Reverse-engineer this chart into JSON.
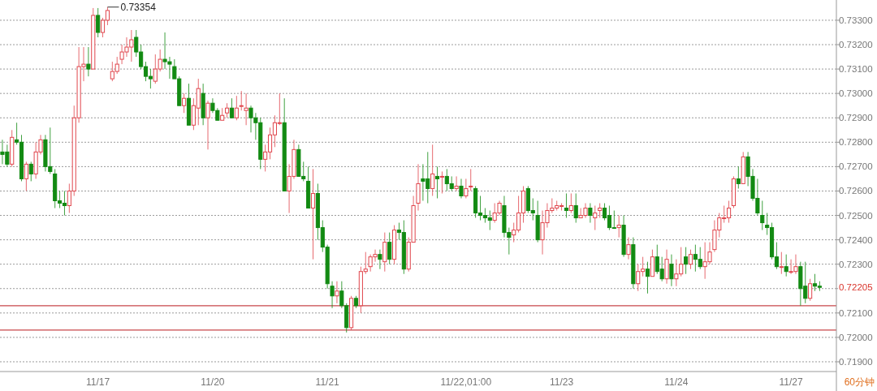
{
  "chart_data": {
    "type": "candlestick",
    "categories": [
      null,
      null,
      null,
      null,
      null,
      null,
      null,
      null,
      null,
      null,
      null,
      null,
      null,
      null,
      null,
      null,
      null,
      null,
      null,
      null,
      "11/17",
      null,
      null,
      null,
      null,
      null,
      null,
      null,
      null,
      null,
      null,
      null,
      null,
      null,
      null,
      null,
      null,
      null,
      null,
      null,
      null,
      null,
      null,
      null,
      "11/20",
      null,
      null,
      null,
      null,
      null,
      null,
      null,
      null,
      null,
      null,
      null,
      null,
      null,
      null,
      null,
      null,
      null,
      null,
      null,
      null,
      null,
      null,
      null,
      "11/21",
      null,
      null,
      null,
      null,
      null,
      null,
      null,
      null,
      null,
      null,
      null,
      null,
      null,
      null,
      null,
      null,
      null,
      null,
      null,
      null,
      null,
      null,
      null,
      null,
      null,
      null,
      null,
      null,
      "11/22,01:00",
      null,
      null,
      null,
      null,
      null,
      null,
      null,
      null,
      null,
      null,
      null,
      null,
      null,
      null,
      null,
      null,
      null,
      null,
      null,
      "11/23",
      null,
      null,
      null,
      null,
      null,
      null,
      null,
      null,
      null,
      null,
      null,
      null,
      null,
      null,
      null,
      null,
      null,
      null,
      null,
      null,
      null,
      null,
      null,
      "11/24",
      null,
      null,
      null,
      null,
      null,
      null,
      null,
      null,
      null,
      null,
      null,
      null,
      null,
      null,
      null,
      null,
      null,
      null,
      null,
      null,
      null,
      null,
      null,
      "11/27",
      null,
      null,
      null,
      null,
      null,
      null
    ],
    "ohlc": [
      [
        0.7276,
        0.7281,
        0.7271,
        0.7275
      ],
      [
        0.7276,
        0.7279,
        0.727,
        0.7271
      ],
      [
        0.7271,
        0.7285,
        0.727,
        0.7282
      ],
      [
        0.7281,
        0.7288,
        0.7279,
        0.728
      ],
      [
        0.728,
        0.7283,
        0.7264,
        0.7265
      ],
      [
        0.7265,
        0.7272,
        0.726,
        0.7271
      ],
      [
        0.7271,
        0.7272,
        0.7264,
        0.7267
      ],
      [
        0.7267,
        0.728,
        0.7265,
        0.7276
      ],
      [
        0.7276,
        0.7283,
        0.7275,
        0.7281
      ],
      [
        0.7281,
        0.7283,
        0.7268,
        0.727
      ],
      [
        0.727,
        0.7286,
        0.7267,
        0.7268
      ],
      [
        0.7267,
        0.7269,
        0.7253,
        0.7256
      ],
      [
        0.7256,
        0.726,
        0.7253,
        0.7255
      ],
      [
        0.7255,
        0.726,
        0.725,
        0.7254
      ],
      [
        0.7254,
        0.7263,
        0.7251,
        0.726
      ],
      [
        0.726,
        0.7295,
        0.7258,
        0.729
      ],
      [
        0.729,
        0.7319,
        0.7288,
        0.7311
      ],
      [
        0.7311,
        0.7319,
        0.7305,
        0.7312
      ],
      [
        0.7312,
        0.7319,
        0.7307,
        0.731
      ],
      [
        0.731,
        0.7335,
        0.731,
        0.7332
      ],
      [
        0.7332,
        0.7335,
        0.7323,
        0.7325
      ],
      [
        0.7325,
        0.7331,
        0.7323,
        0.733
      ],
      [
        0.733,
        0.73354,
        0.7328,
        0.7334
      ],
      [
        0.7306,
        0.7313,
        0.7305,
        0.7309
      ],
      [
        0.7309,
        0.7315,
        0.7308,
        0.7312
      ],
      [
        0.7314,
        0.732,
        0.7312,
        0.7317
      ],
      [
        0.7317,
        0.7323,
        0.7315,
        0.7319
      ],
      [
        0.7319,
        0.7326,
        0.7313,
        0.7322
      ],
      [
        0.7323,
        0.7326,
        0.7315,
        0.7317
      ],
      [
        0.7317,
        0.732,
        0.731,
        0.7311
      ],
      [
        0.7311,
        0.7313,
        0.7305,
        0.7307
      ],
      [
        0.7307,
        0.731,
        0.7302,
        0.7306
      ],
      [
        0.7305,
        0.7316,
        0.7304,
        0.731
      ],
      [
        0.731,
        0.7318,
        0.7309,
        0.7314
      ],
      [
        0.7314,
        0.7325,
        0.731,
        0.7313
      ],
      [
        0.7313,
        0.7315,
        0.7306,
        0.7312
      ],
      [
        0.7311,
        0.7314,
        0.7306,
        0.7306
      ],
      [
        0.7306,
        0.7307,
        0.7295,
        0.7295
      ],
      [
        0.7295,
        0.73,
        0.7292,
        0.7298
      ],
      [
        0.7298,
        0.7304,
        0.7287,
        0.7287
      ],
      [
        0.7287,
        0.7298,
        0.7285,
        0.7295
      ],
      [
        0.7294,
        0.7306,
        0.7287,
        0.7302
      ],
      [
        0.73,
        0.7304,
        0.7287,
        0.729
      ],
      [
        0.729,
        0.7297,
        0.7277,
        0.7296
      ],
      [
        0.7296,
        0.7298,
        0.7292,
        0.7293
      ],
      [
        0.7293,
        0.7294,
        0.7289,
        0.7289
      ],
      [
        0.7289,
        0.7294,
        0.7289,
        0.7291
      ],
      [
        0.7292,
        0.7296,
        0.729,
        0.7294
      ],
      [
        0.7294,
        0.7298,
        0.729,
        0.729
      ],
      [
        0.729,
        0.7299,
        0.7289,
        0.7294
      ],
      [
        0.7295,
        0.7301,
        0.7293,
        0.7295
      ],
      [
        0.7293,
        0.73,
        0.7287,
        0.7294
      ],
      [
        0.7294,
        0.7295,
        0.7284,
        0.729
      ],
      [
        0.729,
        0.7292,
        0.7281,
        0.7288
      ],
      [
        0.7288,
        0.729,
        0.7269,
        0.7273
      ],
      [
        0.7273,
        0.7279,
        0.7268,
        0.7276
      ],
      [
        0.7276,
        0.7286,
        0.7273,
        0.7283
      ],
      [
        0.7283,
        0.7291,
        0.7278,
        0.7288
      ],
      [
        0.7288,
        0.73,
        0.7287,
        0.7288
      ],
      [
        0.7288,
        0.7298,
        0.726,
        0.726
      ],
      [
        0.726,
        0.7271,
        0.7251,
        0.7266
      ],
      [
        0.7266,
        0.7281,
        0.7265,
        0.7277
      ],
      [
        0.7277,
        0.7279,
        0.7266,
        0.7266
      ],
      [
        0.7266,
        0.7272,
        0.7264,
        0.7265
      ],
      [
        0.7264,
        0.727,
        0.7253,
        0.7253
      ],
      [
        0.7253,
        0.7269,
        0.7232,
        0.7259
      ],
      [
        0.7259,
        0.7263,
        0.724,
        0.7245
      ],
      [
        0.7245,
        0.7248,
        0.7235,
        0.7237
      ],
      [
        0.7237,
        0.7238,
        0.722,
        0.7222
      ],
      [
        0.7221,
        0.7223,
        0.7212,
        0.7217
      ],
      [
        0.7217,
        0.7223,
        0.7214,
        0.7219
      ],
      [
        0.7219,
        0.7223,
        0.7212,
        0.7213
      ],
      [
        0.7213,
        0.7214,
        0.7202,
        0.7204
      ],
      [
        0.7204,
        0.7217,
        0.7203,
        0.7216
      ],
      [
        0.7216,
        0.7217,
        0.7212,
        0.7213
      ],
      [
        0.7213,
        0.7229,
        0.721,
        0.7227
      ],
      [
        0.7227,
        0.7235,
        0.7226,
        0.7228
      ],
      [
        0.7229,
        0.7234,
        0.7227,
        0.7233
      ],
      [
        0.7233,
        0.7236,
        0.7231,
        0.7234
      ],
      [
        0.7234,
        0.7236,
        0.7228,
        0.7232
      ],
      [
        0.7231,
        0.7243,
        0.7227,
        0.7239
      ],
      [
        0.7239,
        0.7243,
        0.723,
        0.7232
      ],
      [
        0.7232,
        0.7246,
        0.723,
        0.7244
      ],
      [
        0.7244,
        0.7247,
        0.724,
        0.7243
      ],
      [
        0.7243,
        0.7248,
        0.7226,
        0.7228
      ],
      [
        0.7228,
        0.7241,
        0.7227,
        0.7239
      ],
      [
        0.7239,
        0.7258,
        0.7239,
        0.7254
      ],
      [
        0.7255,
        0.7271,
        0.7252,
        0.7263
      ],
      [
        0.7265,
        0.7271,
        0.7256,
        0.7264
      ],
      [
        0.7265,
        0.7276,
        0.7255,
        0.7261
      ],
      [
        0.7261,
        0.7279,
        0.7258,
        0.7267
      ],
      [
        0.7266,
        0.727,
        0.7257,
        0.7265
      ],
      [
        0.7266,
        0.7268,
        0.7259,
        0.7266
      ],
      [
        0.7266,
        0.7269,
        0.726,
        0.7263
      ],
      [
        0.7263,
        0.7266,
        0.726,
        0.7261
      ],
      [
        0.7261,
        0.7266,
        0.726,
        0.7262
      ],
      [
        0.7262,
        0.7265,
        0.7257,
        0.7258
      ],
      [
        0.7258,
        0.7265,
        0.7257,
        0.7261
      ],
      [
        0.7262,
        0.7269,
        0.726,
        0.7262
      ],
      [
        0.7261,
        0.7262,
        0.7249,
        0.7251
      ],
      [
        0.7251,
        0.7258,
        0.7248,
        0.725
      ],
      [
        0.725,
        0.7253,
        0.7247,
        0.7249
      ],
      [
        0.7249,
        0.7252,
        0.7244,
        0.7248
      ],
      [
        0.7248,
        0.7255,
        0.7247,
        0.7251
      ],
      [
        0.7251,
        0.7256,
        0.725,
        0.7255
      ],
      [
        0.7254,
        0.7258,
        0.7241,
        0.7243
      ],
      [
        0.7243,
        0.7245,
        0.7234,
        0.7241
      ],
      [
        0.7242,
        0.7247,
        0.7239,
        0.7244
      ],
      [
        0.7244,
        0.7258,
        0.7243,
        0.7251
      ],
      [
        0.7251,
        0.7262,
        0.7247,
        0.726
      ],
      [
        0.7261,
        0.7262,
        0.7251,
        0.7252
      ],
      [
        0.7252,
        0.7257,
        0.7248,
        0.7251
      ],
      [
        0.725,
        0.7256,
        0.7239,
        0.724
      ],
      [
        0.724,
        0.7252,
        0.7234,
        0.7247
      ],
      [
        0.7247,
        0.7255,
        0.7245,
        0.7252
      ],
      [
        0.7252,
        0.7257,
        0.7251,
        0.7253
      ],
      [
        0.7253,
        0.7256,
        0.7252,
        0.7254
      ],
      [
        0.7254,
        0.7255,
        0.7252,
        0.7254
      ],
      [
        0.7253,
        0.7259,
        0.7249,
        0.7252
      ],
      [
        0.7252,
        0.7259,
        0.7251,
        0.7254
      ],
      [
        0.7254,
        0.7259,
        0.7247,
        0.7249
      ],
      [
        0.7249,
        0.7253,
        0.7249,
        0.725
      ],
      [
        0.725,
        0.7255,
        0.7249,
        0.7253
      ],
      [
        0.7253,
        0.7255,
        0.7247,
        0.725
      ],
      [
        0.7249,
        0.7254,
        0.7244,
        0.7251
      ],
      [
        0.7252,
        0.7255,
        0.7249,
        0.7253
      ],
      [
        0.7253,
        0.7255,
        0.7248,
        0.7249
      ],
      [
        0.725,
        0.7254,
        0.7244,
        0.7245
      ],
      [
        0.7245,
        0.7252,
        0.7245,
        0.7245
      ],
      [
        0.7245,
        0.725,
        0.7241,
        0.7246
      ],
      [
        0.7246,
        0.725,
        0.7233,
        0.7234
      ],
      [
        0.7234,
        0.7241,
        0.7232,
        0.7238
      ],
      [
        0.7238,
        0.7241,
        0.722,
        0.7222
      ],
      [
        0.7222,
        0.723,
        0.7219,
        0.7227
      ],
      [
        0.7227,
        0.7233,
        0.7225,
        0.7228
      ],
      [
        0.7228,
        0.7231,
        0.7218,
        0.7225
      ],
      [
        0.7225,
        0.7236,
        0.7225,
        0.7233
      ],
      [
        0.7233,
        0.7238,
        0.7226,
        0.7227
      ],
      [
        0.7228,
        0.7233,
        0.7223,
        0.7224
      ],
      [
        0.7224,
        0.7236,
        0.7222,
        0.7232
      ],
      [
        0.723,
        0.7234,
        0.7221,
        0.7224
      ],
      [
        0.7224,
        0.7232,
        0.7221,
        0.7226
      ],
      [
        0.7226,
        0.7237,
        0.7225,
        0.723
      ],
      [
        0.7233,
        0.7237,
        0.7226,
        0.723
      ],
      [
        0.723,
        0.7236,
        0.7228,
        0.7234
      ],
      [
        0.7234,
        0.7238,
        0.7227,
        0.7232
      ],
      [
        0.7232,
        0.7237,
        0.7228,
        0.7229
      ],
      [
        0.7229,
        0.7239,
        0.7224,
        0.7231
      ],
      [
        0.7231,
        0.7239,
        0.723,
        0.7235
      ],
      [
        0.7236,
        0.7248,
        0.7235,
        0.7244
      ],
      [
        0.7244,
        0.7251,
        0.7241,
        0.7249
      ],
      [
        0.7249,
        0.7254,
        0.7247,
        0.7249
      ],
      [
        0.7249,
        0.7256,
        0.7247,
        0.7253
      ],
      [
        0.7254,
        0.7266,
        0.7253,
        0.7265
      ],
      [
        0.7265,
        0.727,
        0.7261,
        0.7263
      ],
      [
        0.7263,
        0.7276,
        0.7263,
        0.7274
      ],
      [
        0.7274,
        0.7276,
        0.7262,
        0.7266
      ],
      [
        0.7266,
        0.7269,
        0.7256,
        0.7257
      ],
      [
        0.7257,
        0.7265,
        0.725,
        0.7251
      ],
      [
        0.725,
        0.7256,
        0.7244,
        0.7247
      ],
      [
        0.7246,
        0.7251,
        0.7242,
        0.7245
      ],
      [
        0.7245,
        0.7247,
        0.7232,
        0.7233
      ],
      [
        0.7233,
        0.7239,
        0.7228,
        0.7229
      ],
      [
        0.7229,
        0.7235,
        0.7226,
        0.7229
      ],
      [
        0.7229,
        0.7234,
        0.7225,
        0.7227
      ],
      [
        0.7227,
        0.7232,
        0.7226,
        0.7227
      ],
      [
        0.7227,
        0.7234,
        0.7226,
        0.7229
      ],
      [
        0.7229,
        0.7231,
        0.7213,
        0.722
      ],
      [
        0.7221,
        0.7231,
        0.7214,
        0.7216
      ],
      [
        0.7216,
        0.7224,
        0.7215,
        0.7222
      ],
      [
        0.7222,
        0.7226,
        0.7219,
        0.7221
      ],
      [
        0.7221,
        0.7223,
        0.7219,
        0.72205
      ]
    ],
    "colors": [
      "#128a12",
      "#128a12",
      "#e0454c",
      "#128a12",
      "#128a12",
      "#e0454c",
      "#128a12",
      "#e0454c",
      "#e0454c",
      "#128a12",
      "#128a12",
      "#128a12",
      "#128a12",
      "#128a12",
      "#e0454c",
      "#e0454c",
      "#e0454c",
      "#e0454c",
      "#128a12",
      "#e0454c",
      "#128a12",
      "#e0454c",
      "#e0454c",
      "#e0454c",
      "#e0454c",
      "#e0454c",
      "#e0454c",
      "#e0454c",
      "#128a12",
      "#128a12",
      "#128a12",
      "#128a12",
      "#e0454c",
      "#e0454c",
      "#128a12",
      "#128a12",
      "#128a12",
      "#128a12",
      "#e0454c",
      "#128a12",
      "#e0454c",
      "#e0454c",
      "#128a12",
      "#e0454c",
      "#128a12",
      "#128a12",
      "#e0454c",
      "#e0454c",
      "#128a12",
      "#e0454c",
      "#e0454c",
      "#e0454c",
      "#128a12",
      "#128a12",
      "#128a12",
      "#e0454c",
      "#e0454c",
      "#e0454c",
      "#e0454c",
      "#128a12",
      "#e0454c",
      "#e0454c",
      "#128a12",
      "#128a12",
      "#128a12",
      "#e0454c",
      "#128a12",
      "#128a12",
      "#128a12",
      "#128a12",
      "#e0454c",
      "#128a12",
      "#128a12",
      "#e0454c",
      "#128a12",
      "#e0454c",
      "#e0454c",
      "#e0454c",
      "#e0454c",
      "#128a12",
      "#e0454c",
      "#128a12",
      "#e0454c",
      "#128a12",
      "#128a12",
      "#e0454c",
      "#e0454c",
      "#e0454c",
      "#128a12",
      "#128a12",
      "#e0454c",
      "#128a12",
      "#e0454c",
      "#128a12",
      "#128a12",
      "#e0454c",
      "#128a12",
      "#e0454c",
      "#e0454c",
      "#128a12",
      "#128a12",
      "#128a12",
      "#128a12",
      "#e0454c",
      "#e0454c",
      "#128a12",
      "#128a12",
      "#e0454c",
      "#e0454c",
      "#e0454c",
      "#128a12",
      "#128a12",
      "#128a12",
      "#e0454c",
      "#e0454c",
      "#e0454c",
      "#e0454c",
      "#e0454c",
      "#128a12",
      "#e0454c",
      "#128a12",
      "#e0454c",
      "#e0454c",
      "#128a12",
      "#e0454c",
      "#e0454c",
      "#128a12",
      "#128a12",
      "#128a12",
      "#e0454c",
      "#128a12",
      "#e0454c",
      "#128a12",
      "#e0454c",
      "#e0454c",
      "#128a12",
      "#e0454c",
      "#128a12",
      "#128a12",
      "#e0454c",
      "#128a12",
      "#e0454c",
      "#e0454c",
      "#128a12",
      "#e0454c",
      "#128a12",
      "#128a12",
      "#e0454c",
      "#e0454c",
      "#e0454c",
      "#e0454c",
      "#e0454c",
      "#e0454c",
      "#e0454c",
      "#128a12",
      "#e0454c",
      "#128a12",
      "#128a12",
      "#128a12",
      "#128a12",
      "#128a12",
      "#128a12",
      "#128a12",
      "#e0454c",
      "#128a12",
      "#e0454c",
      "#e0454c",
      "#128a12",
      "#128a12",
      "#e0454c",
      "#128a12",
      "#128a12"
    ],
    "ylim": [
      0.7186,
      0.73383
    ],
    "yticks": [
      {
        "value": 0.733,
        "label": "0.73300"
      },
      {
        "value": 0.732,
        "label": "0.73200"
      },
      {
        "value": 0.731,
        "label": "0.73100"
      },
      {
        "value": 0.73,
        "label": "0.73000"
      },
      {
        "value": 0.729,
        "label": "0.72900"
      },
      {
        "value": 0.728,
        "label": "0.72800"
      },
      {
        "value": 0.727,
        "label": "0.72700"
      },
      {
        "value": 0.726,
        "label": "0.72600"
      },
      {
        "value": 0.725,
        "label": "0.72500"
      },
      {
        "value": 0.724,
        "label": "0.72400"
      },
      {
        "value": 0.723,
        "label": "0.72300"
      },
      {
        "value": 0.722,
        "label": null
      },
      {
        "value": 0.721,
        "label": "0.72100"
      },
      {
        "value": 0.72,
        "label": "0.72000"
      },
      {
        "value": 0.719,
        "label": "0.71900"
      }
    ],
    "grid": "y",
    "ref_lines": [
      {
        "axis": "y",
        "value": 0.7213,
        "color": "#c8474a"
      },
      {
        "axis": "y",
        "value": 0.7203,
        "color": "#c8474a"
      }
    ],
    "annotations": [
      "0.73354",
      "0.72205",
      "60分钟"
    ]
  }
}
